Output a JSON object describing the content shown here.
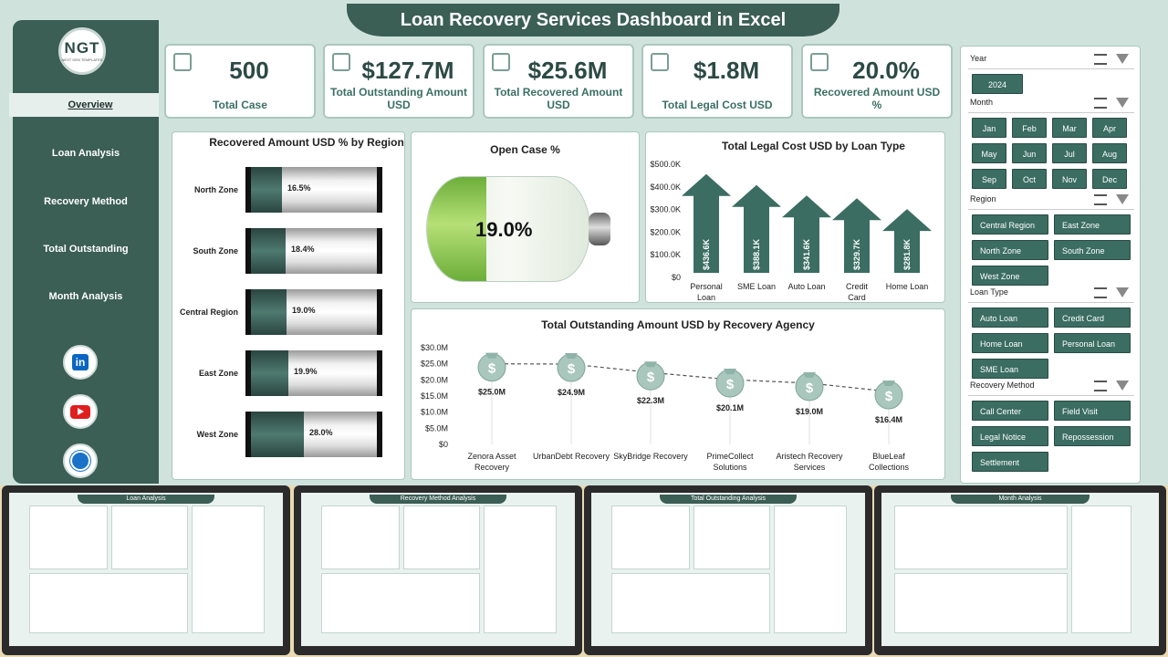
{
  "title": "Loan Recovery Services Dashboard in Excel",
  "logo": {
    "text": "NGT",
    "sub": "NEXT GEN TEMPLATES"
  },
  "nav": [
    {
      "label": "Overview",
      "active": true
    },
    {
      "label": "Loan Analysis"
    },
    {
      "label": "Recovery Method"
    },
    {
      "label": "Total Outstanding"
    },
    {
      "label": "Month Analysis"
    }
  ],
  "social": [
    "linkedin-icon",
    "youtube-icon",
    "globe-icon"
  ],
  "kpis": [
    {
      "value": "500",
      "label": "Total Case"
    },
    {
      "value": "$127.7M",
      "label": "Total Outstanding Amount USD"
    },
    {
      "value": "$25.6M",
      "label": "Total Recovered Amount USD"
    },
    {
      "value": "$1.8M",
      "label": "Total Legal Cost USD"
    },
    {
      "value": "20.0%",
      "label": "Recovered Amount USD %"
    }
  ],
  "region_chart": {
    "title": "Recovered Amount USD % by Region",
    "rows": [
      {
        "label": "North Zone",
        "value": 16.5,
        "text": "16.5%"
      },
      {
        "label": "South Zone",
        "value": 18.4,
        "text": "18.4%"
      },
      {
        "label": "Central Region",
        "value": 19.0,
        "text": "19.0%"
      },
      {
        "label": "East Zone",
        "value": 19.9,
        "text": "19.9%"
      },
      {
        "label": "West Zone",
        "value": 28.0,
        "text": "28.0%"
      }
    ]
  },
  "open_case": {
    "title": "Open Case %",
    "value": 19.0,
    "text": "19.0%"
  },
  "chart_data": [
    {
      "type": "bar",
      "title": "Total Legal Cost USD by Loan Type",
      "categories": [
        "Personal Loan",
        "SME Loan",
        "Auto Loan",
        "Credit Card",
        "Home Loan"
      ],
      "values": [
        436.6,
        388.1,
        341.6,
        329.7,
        281.8
      ],
      "labels": [
        "$436.6K",
        "$388.1K",
        "$341.6K",
        "$329.7K",
        "$281.8K"
      ],
      "yticks": [
        "$500.0K",
        "$400.0K",
        "$300.0K",
        "$200.0K",
        "$100.0K",
        "$0"
      ],
      "ylim": [
        0,
        500
      ]
    },
    {
      "type": "line",
      "title": "Total Outstanding Amount USD by Recovery Agency",
      "categories": [
        "Zenora Asset Recovery",
        "UrbanDebt Recovery",
        "SkyBridge Recovery",
        "PrimeCollect Solutions",
        "Aristech Recovery Services",
        "BlueLeaf Collections"
      ],
      "values": [
        25.0,
        24.9,
        22.3,
        20.1,
        19.0,
        16.4
      ],
      "labels": [
        "$25.0M",
        "$24.9M",
        "$22.3M",
        "$20.1M",
        "$19.0M",
        "$16.4M"
      ],
      "yticks": [
        "$30.0M",
        "$25.0M",
        "$20.0M",
        "$15.0M",
        "$10.0M",
        "$5.0M",
        "$0"
      ],
      "ylim": [
        0,
        30
      ]
    }
  ],
  "filters": {
    "year": {
      "label": "Year",
      "items": [
        "2024"
      ]
    },
    "month": {
      "label": "Month",
      "items": [
        "Jan",
        "Feb",
        "Mar",
        "Apr",
        "May",
        "Jun",
        "Jul",
        "Aug",
        "Sep",
        "Oct",
        "Nov",
        "Dec"
      ]
    },
    "region": {
      "label": "Region",
      "items": [
        "Central Region",
        "East Zone",
        "North Zone",
        "South Zone",
        "West Zone"
      ]
    },
    "loan_type": {
      "label": "Loan Type",
      "items": [
        "Auto Loan",
        "Credit Card",
        "Home Loan",
        "Personal Loan",
        "SME Loan"
      ]
    },
    "recovery_method": {
      "label": "Recovery Method",
      "items": [
        "Call Center",
        "Field Visit",
        "Legal Notice",
        "Repossession",
        "Settlement"
      ]
    }
  },
  "thumbnails": [
    "Loan Analysis",
    "Recovery Method Analysis",
    "Total Outstanding Analysis",
    "Month Analysis"
  ]
}
